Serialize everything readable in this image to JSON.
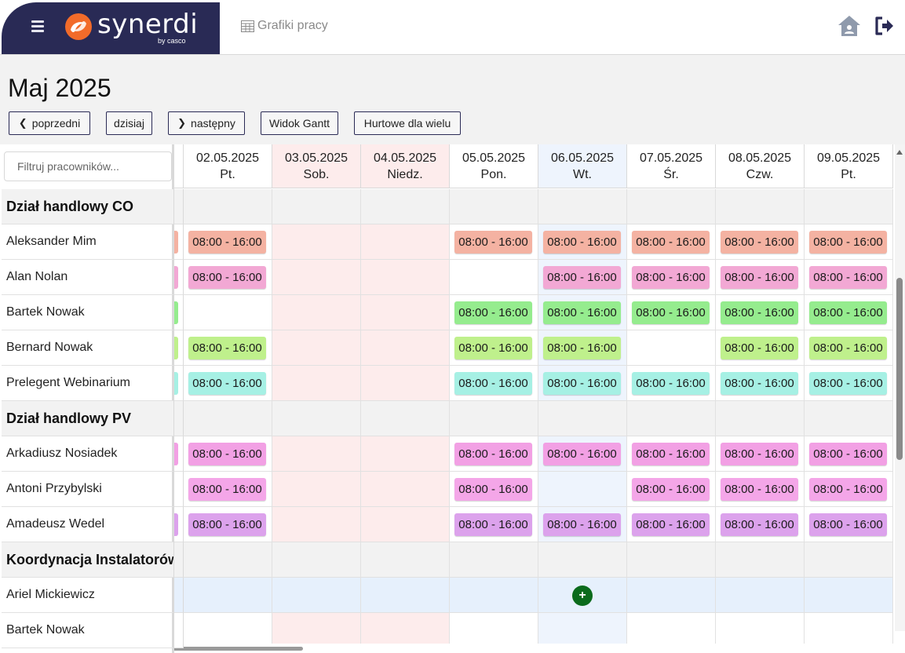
{
  "app": {
    "logo_text": "synerdi",
    "logo_sub": "by casco",
    "breadcrumb": "Grafiki pracy"
  },
  "colors": {
    "brand_bg": "#292a55",
    "weekend_bg": "#fdecec",
    "today_bg": "#eef4fd",
    "group_bg": "#f2f2f2",
    "selected_row_bg": "#e6f0fc",
    "add_button": "#0b6b1c"
  },
  "header": {
    "title": "Maj 2025",
    "buttons": {
      "prev": "poprzedni",
      "today": "dzisiaj",
      "next": "następny",
      "gantt": "Widok Gantt",
      "bulk": "Hurtowe dla wielu"
    }
  },
  "filter": {
    "placeholder": "Filtruj pracowników..."
  },
  "days": [
    {
      "date": "02.05.2025",
      "dow": "Pt.",
      "kind": "normal"
    },
    {
      "date": "03.05.2025",
      "dow": "Sob.",
      "kind": "weekend"
    },
    {
      "date": "04.05.2025",
      "dow": "Niedz.",
      "kind": "weekend"
    },
    {
      "date": "05.05.2025",
      "dow": "Pon.",
      "kind": "normal"
    },
    {
      "date": "06.05.2025",
      "dow": "Wt.",
      "kind": "today"
    },
    {
      "date": "07.05.2025",
      "dow": "Śr.",
      "kind": "normal"
    },
    {
      "date": "08.05.2025",
      "dow": "Czw.",
      "kind": "normal"
    },
    {
      "date": "09.05.2025",
      "dow": "Pt.",
      "kind": "normal"
    }
  ],
  "rows": [
    {
      "type": "group",
      "name": "Dział handlowy CO"
    },
    {
      "type": "person",
      "name": "Aleksander Mim",
      "color": "#f4b2a2",
      "stub": true,
      "shifts": [
        "08:00 - 16:00",
        "",
        "",
        "08:00 - 16:00",
        "08:00 - 16:00",
        "08:00 - 16:00",
        "08:00 - 16:00",
        "08:00 - 16:00"
      ]
    },
    {
      "type": "person",
      "name": "Alan Nolan",
      "color": "#f2a8d4",
      "stub": true,
      "shifts": [
        "08:00 - 16:00",
        "",
        "",
        "",
        "08:00 - 16:00",
        "08:00 - 16:00",
        "08:00 - 16:00",
        "08:00 - 16:00"
      ]
    },
    {
      "type": "person",
      "name": "Bartek Nowak",
      "color": "#95ec8e",
      "stub": true,
      "shifts": [
        "",
        "",
        "",
        "08:00 - 16:00",
        "08:00 - 16:00",
        "08:00 - 16:00",
        "08:00 - 16:00",
        "08:00 - 16:00"
      ]
    },
    {
      "type": "person",
      "name": "Bernard Nowak",
      "color": "#bff08c",
      "stub": true,
      "shifts": [
        "08:00 - 16:00",
        "",
        "",
        "08:00 - 16:00",
        "08:00 - 16:00",
        "",
        "08:00 - 16:00",
        "08:00 - 16:00"
      ]
    },
    {
      "type": "person",
      "name": "Prelegent Webinarium",
      "color": "#a6f0e4",
      "stub": true,
      "shifts": [
        "08:00 - 16:00",
        "",
        "",
        "08:00 - 16:00",
        "08:00 - 16:00",
        "08:00 - 16:00",
        "08:00 - 16:00",
        "08:00 - 16:00"
      ]
    },
    {
      "type": "group",
      "name": "Dział handlowy PV"
    },
    {
      "type": "person",
      "name": "Arkadiusz Nosiadek",
      "color": "#f2a0e4",
      "stub": true,
      "shifts": [
        "08:00 - 16:00",
        "",
        "",
        "08:00 - 16:00",
        "08:00 - 16:00",
        "08:00 - 16:00",
        "08:00 - 16:00",
        "08:00 - 16:00"
      ]
    },
    {
      "type": "person",
      "name": "Antoni Przybylski",
      "color": "#f4a6e8",
      "stub": false,
      "shifts": [
        "08:00 - 16:00",
        "",
        "",
        "08:00 - 16:00",
        "",
        "08:00 - 16:00",
        "08:00 - 16:00",
        "08:00 - 16:00"
      ]
    },
    {
      "type": "person",
      "name": "Amadeusz Wedel",
      "color": "#dca2ec",
      "stub": true,
      "shifts": [
        "08:00 - 16:00",
        "",
        "",
        "08:00 - 16:00",
        "08:00 - 16:00",
        "08:00 - 16:00",
        "08:00 - 16:00",
        "08:00 - 16:00"
      ]
    },
    {
      "type": "group",
      "name": "Koordynacja Instalatorów"
    },
    {
      "type": "person",
      "name": "Ariel Mickiewicz",
      "color": "#ffffff",
      "stub": false,
      "selected": true,
      "add_at": 4,
      "shifts": [
        "",
        "",
        "",
        "",
        "",
        "",
        "",
        ""
      ]
    },
    {
      "type": "person",
      "name": "Bartek Nowak",
      "color": "#ffffff",
      "stub": false,
      "shifts": [
        "",
        "",
        "",
        "",
        "",
        "",
        "",
        ""
      ]
    }
  ]
}
